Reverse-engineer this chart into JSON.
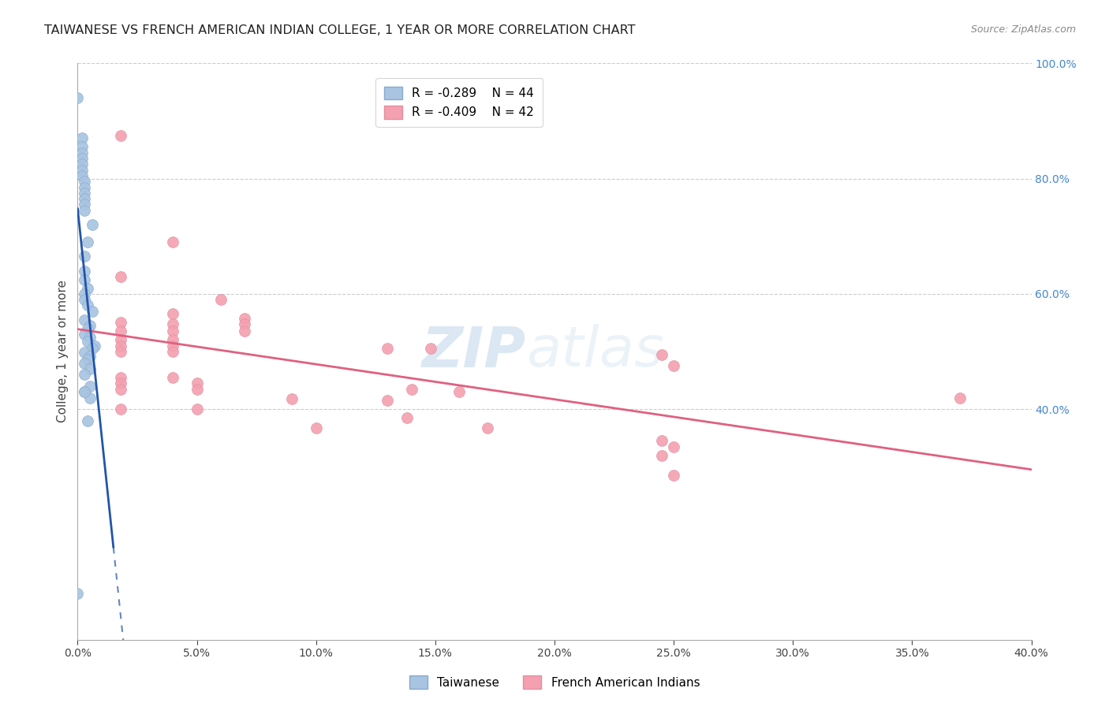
{
  "title": "TAIWANESE VS FRENCH AMERICAN INDIAN COLLEGE, 1 YEAR OR MORE CORRELATION CHART",
  "source": "Source: ZipAtlas.com",
  "ylabel": "College, 1 year or more",
  "xlabel_ticks": [
    "0.0%",
    "5.0%",
    "10.0%",
    "15.0%",
    "20.0%",
    "25.0%",
    "30.0%",
    "35.0%",
    "40.0%"
  ],
  "xlabel_vals": [
    0.0,
    0.05,
    0.1,
    0.15,
    0.2,
    0.25,
    0.3,
    0.35,
    0.4
  ],
  "ylabel_ticks_right": [
    "40.0%",
    "60.0%",
    "80.0%",
    "100.0%"
  ],
  "ylabel_vals_right": [
    0.4,
    0.6,
    0.8,
    1.0
  ],
  "xmin": 0.0,
  "xmax": 0.4,
  "ymin": 0.0,
  "ymax": 1.0,
  "legend_r_blue": "R = -0.289",
  "legend_n_blue": "N = 44",
  "legend_r_pink": "R = -0.409",
  "legend_n_pink": "N = 42",
  "blue_color": "#a8c4e0",
  "pink_color": "#f4a0b0",
  "blue_line_color": "#2255aa",
  "pink_line_color": "#e06080",
  "taiwanese_points": [
    [
      0.0,
      0.94
    ],
    [
      0.002,
      0.87
    ],
    [
      0.002,
      0.855
    ],
    [
      0.002,
      0.845
    ],
    [
      0.002,
      0.835
    ],
    [
      0.002,
      0.825
    ],
    [
      0.002,
      0.815
    ],
    [
      0.002,
      0.805
    ],
    [
      0.003,
      0.795
    ],
    [
      0.003,
      0.785
    ],
    [
      0.003,
      0.775
    ],
    [
      0.003,
      0.765
    ],
    [
      0.003,
      0.755
    ],
    [
      0.003,
      0.745
    ],
    [
      0.006,
      0.72
    ],
    [
      0.004,
      0.69
    ],
    [
      0.003,
      0.665
    ],
    [
      0.003,
      0.64
    ],
    [
      0.003,
      0.625
    ],
    [
      0.004,
      0.61
    ],
    [
      0.003,
      0.6
    ],
    [
      0.003,
      0.59
    ],
    [
      0.004,
      0.58
    ],
    [
      0.006,
      0.57
    ],
    [
      0.003,
      0.555
    ],
    [
      0.005,
      0.545
    ],
    [
      0.004,
      0.54
    ],
    [
      0.003,
      0.53
    ],
    [
      0.005,
      0.525
    ],
    [
      0.004,
      0.518
    ],
    [
      0.007,
      0.51
    ],
    [
      0.006,
      0.505
    ],
    [
      0.003,
      0.498
    ],
    [
      0.005,
      0.492
    ],
    [
      0.004,
      0.487
    ],
    [
      0.003,
      0.48
    ],
    [
      0.005,
      0.47
    ],
    [
      0.003,
      0.46
    ],
    [
      0.005,
      0.44
    ],
    [
      0.003,
      0.43
    ],
    [
      0.005,
      0.42
    ],
    [
      0.004,
      0.38
    ],
    [
      0.003,
      0.43
    ],
    [
      0.0,
      0.08
    ]
  ],
  "french_points": [
    [
      0.018,
      0.875
    ],
    [
      0.04,
      0.69
    ],
    [
      0.018,
      0.63
    ],
    [
      0.06,
      0.59
    ],
    [
      0.04,
      0.565
    ],
    [
      0.07,
      0.558
    ],
    [
      0.018,
      0.55
    ],
    [
      0.04,
      0.548
    ],
    [
      0.07,
      0.548
    ],
    [
      0.018,
      0.535
    ],
    [
      0.04,
      0.535
    ],
    [
      0.07,
      0.535
    ],
    [
      0.018,
      0.52
    ],
    [
      0.04,
      0.52
    ],
    [
      0.018,
      0.51
    ],
    [
      0.04,
      0.51
    ],
    [
      0.018,
      0.5
    ],
    [
      0.04,
      0.5
    ],
    [
      0.13,
      0.505
    ],
    [
      0.148,
      0.505
    ],
    [
      0.245,
      0.495
    ],
    [
      0.018,
      0.455
    ],
    [
      0.04,
      0.455
    ],
    [
      0.018,
      0.445
    ],
    [
      0.05,
      0.445
    ],
    [
      0.018,
      0.435
    ],
    [
      0.05,
      0.435
    ],
    [
      0.14,
      0.435
    ],
    [
      0.16,
      0.43
    ],
    [
      0.09,
      0.418
    ],
    [
      0.13,
      0.415
    ],
    [
      0.018,
      0.4
    ],
    [
      0.05,
      0.4
    ],
    [
      0.138,
      0.385
    ],
    [
      0.25,
      0.475
    ],
    [
      0.1,
      0.368
    ],
    [
      0.172,
      0.368
    ],
    [
      0.245,
      0.345
    ],
    [
      0.25,
      0.335
    ],
    [
      0.37,
      0.42
    ],
    [
      0.25,
      0.285
    ],
    [
      0.245,
      0.32
    ]
  ],
  "watermark_zip": "ZIP",
  "watermark_atlas": "atlas",
  "background_color": "#ffffff",
  "grid_color": "#cccccc"
}
